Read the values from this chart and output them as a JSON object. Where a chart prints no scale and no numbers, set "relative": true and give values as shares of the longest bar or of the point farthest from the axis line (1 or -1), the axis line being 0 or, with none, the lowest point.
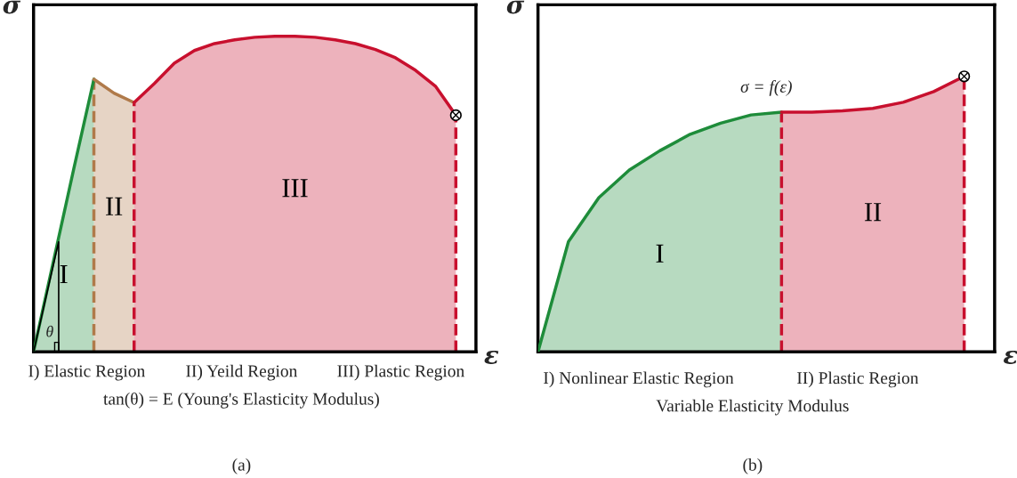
{
  "chart_data": [
    {
      "type": "area",
      "relative": true,
      "ylabel": "σ",
      "xlabel": "ε",
      "tick_labels": false,
      "categories": [
        null,
        null,
        null,
        null,
        null,
        null,
        null,
        null,
        null,
        null,
        null,
        null,
        null,
        null,
        null,
        null,
        null,
        null,
        null,
        null,
        null,
        null,
        null
      ],
      "series": [
        {
          "name": "I",
          "color": "#1e8c3a",
          "values": [
            0,
            0.29,
            0.58,
            0.864,
            null,
            null,
            null,
            null,
            null,
            null,
            null,
            null,
            null,
            null,
            null,
            null,
            null,
            null,
            null,
            null,
            null,
            null,
            null
          ]
        },
        {
          "name": "II",
          "color": "#b07a4a",
          "values": [
            null,
            null,
            null,
            0.864,
            0.82,
            0.79,
            null,
            null,
            null,
            null,
            null,
            null,
            null,
            null,
            null,
            null,
            null,
            null,
            null,
            null,
            null,
            null,
            null
          ]
        },
        {
          "name": "III",
          "color": "#c8102e",
          "values": [
            null,
            null,
            null,
            null,
            null,
            0.79,
            0.85,
            0.915,
            0.955,
            0.977,
            0.989,
            0.997,
            1,
            1,
            0.997,
            0.989,
            0.977,
            0.958,
            0.932,
            0.892,
            0.841,
            0.75,
            null
          ]
        }
      ],
      "annotations": [
        "θ",
        "I) Elastic Region",
        "II) Yeild Region",
        "III) Plastic Region",
        "tan(θ) = E (Young's Elasticity Modulus)",
        "(a)"
      ]
    },
    {
      "type": "area",
      "relative": true,
      "ylabel": "σ",
      "xlabel": "ε",
      "tick_labels": false,
      "categories": [
        null,
        null,
        null,
        null,
        null,
        null,
        null,
        null,
        null,
        null,
        null,
        null,
        null,
        null,
        null,
        null
      ],
      "series": [
        {
          "name": "I",
          "color": "#1e8c3a",
          "values": [
            0,
            0.4,
            0.56,
            0.66,
            0.73,
            0.79,
            0.83,
            0.86,
            0.87,
            null,
            null,
            null,
            null,
            null,
            null,
            null
          ]
        },
        {
          "name": "II",
          "color": "#c8102e",
          "values": [
            null,
            null,
            null,
            null,
            null,
            null,
            null,
            null,
            0.87,
            0.87,
            0.875,
            0.884,
            0.906,
            0.945,
            1,
            null
          ]
        }
      ],
      "annotations": [
        "σ = f(ε)",
        "I) Nonlinear Elastic Region",
        "II) Plastic Region",
        "Variable Elasticity Modulus",
        "(b)"
      ]
    }
  ]
}
